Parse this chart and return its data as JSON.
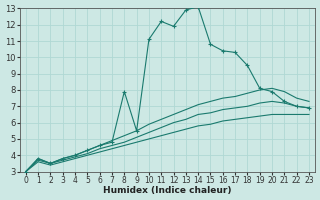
{
  "xlabel": "Humidex (Indice chaleur)",
  "bg_color": "#cde8e4",
  "grid_color": "#b0d8d4",
  "line_color": "#1a7a6e",
  "xlim": [
    -0.5,
    23.5
  ],
  "ylim": [
    3,
    13
  ],
  "xticks": [
    0,
    1,
    2,
    3,
    4,
    5,
    6,
    7,
    8,
    9,
    10,
    11,
    12,
    13,
    14,
    15,
    16,
    17,
    18,
    19,
    20,
    21,
    22,
    23
  ],
  "yticks": [
    3,
    4,
    5,
    6,
    7,
    8,
    9,
    10,
    11,
    12,
    13
  ],
  "lines": [
    {
      "x": [
        0,
        1,
        2,
        3,
        4,
        5,
        6,
        7,
        8,
        9,
        10,
        11,
        12,
        13,
        14,
        15,
        16,
        17,
        18,
        19,
        20,
        21,
        22,
        23
      ],
      "y": [
        3.0,
        3.8,
        3.5,
        3.8,
        4.0,
        4.3,
        4.6,
        4.8,
        7.9,
        5.5,
        11.1,
        12.2,
        11.9,
        12.9,
        13.1,
        10.8,
        10.4,
        10.3,
        9.5,
        8.1,
        7.9,
        7.3,
        7.0,
        6.9
      ],
      "marker": true
    },
    {
      "x": [
        0,
        1,
        2,
        3,
        4,
        5,
        6,
        7,
        8,
        9,
        10,
        11,
        12,
        13,
        14,
        15,
        16,
        17,
        18,
        19,
        20,
        21,
        22,
        23
      ],
      "y": [
        3.0,
        3.8,
        3.5,
        3.8,
        4.0,
        4.3,
        4.6,
        4.9,
        5.2,
        5.5,
        5.9,
        6.2,
        6.5,
        6.8,
        7.1,
        7.3,
        7.5,
        7.6,
        7.8,
        8.0,
        8.1,
        7.9,
        7.5,
        7.3
      ],
      "marker": false
    },
    {
      "x": [
        0,
        1,
        2,
        3,
        4,
        5,
        6,
        7,
        8,
        9,
        10,
        11,
        12,
        13,
        14,
        15,
        16,
        17,
        18,
        19,
        20,
        21,
        22,
        23
      ],
      "y": [
        3.0,
        3.7,
        3.5,
        3.7,
        3.9,
        4.1,
        4.4,
        4.6,
        4.8,
        5.1,
        5.4,
        5.7,
        6.0,
        6.2,
        6.5,
        6.6,
        6.8,
        6.9,
        7.0,
        7.2,
        7.3,
        7.2,
        7.0,
        6.9
      ],
      "marker": false
    },
    {
      "x": [
        0,
        1,
        2,
        3,
        4,
        5,
        6,
        7,
        8,
        9,
        10,
        11,
        12,
        13,
        14,
        15,
        16,
        17,
        18,
        19,
        20,
        21,
        22,
        23
      ],
      "y": [
        3.0,
        3.6,
        3.4,
        3.6,
        3.8,
        4.0,
        4.2,
        4.4,
        4.6,
        4.8,
        5.0,
        5.2,
        5.4,
        5.6,
        5.8,
        5.9,
        6.1,
        6.2,
        6.3,
        6.4,
        6.5,
        6.5,
        6.5,
        6.5
      ],
      "marker": false
    }
  ]
}
